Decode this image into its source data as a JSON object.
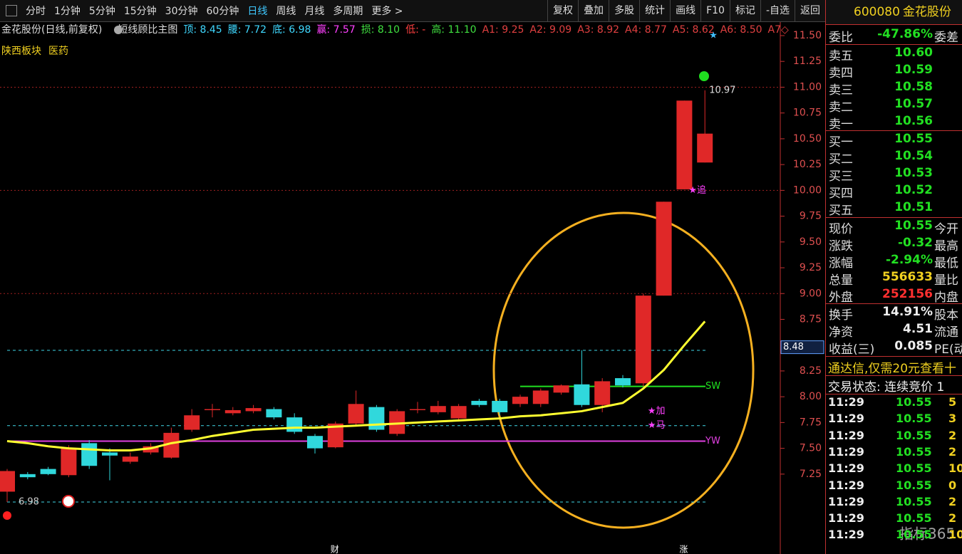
{
  "toolbar": {
    "tabs": [
      "分时",
      "1分钟",
      "5分钟",
      "15分钟",
      "30分钟",
      "60分钟",
      "日线",
      "周线",
      "月线",
      "多周期",
      "更多 >"
    ],
    "active": 6,
    "buttons": [
      "复权",
      "叠加",
      "多股",
      "统计",
      "画线",
      "F10",
      "标记",
      "-自选",
      "返回"
    ]
  },
  "stock": {
    "code": "600080",
    "name": "金花股份"
  },
  "indicator": {
    "title": "金花股份(日线,前复权)",
    "name": "短线顾比主图",
    "items": [
      {
        "text": "顶: 8.45",
        "color": "#3fd8ff"
      },
      {
        "text": "腰: 7.72",
        "color": "#3fd8ff"
      },
      {
        "text": "底: 6.98",
        "color": "#3fd8ff"
      },
      {
        "text": "赢: 7.57",
        "color": "#ff40ff"
      },
      {
        "text": "损: 8.10",
        "color": "#40e040"
      },
      {
        "text": "低: -",
        "color": "#ff4040"
      },
      {
        "text": "高: 11.10",
        "color": "#40e040"
      },
      {
        "text": "A1: 9.25",
        "color": "#e04040"
      },
      {
        "text": "A2: 9.09",
        "color": "#e04040"
      },
      {
        "text": "A3: 8.92",
        "color": "#e04040"
      },
      {
        "text": "A4: 8.77",
        "color": "#e04040"
      },
      {
        "text": "A5: 8.62",
        "color": "#e04040"
      },
      {
        "text": "A6: 8.50",
        "color": "#e04040"
      },
      {
        "text": "A7◇",
        "color": "#e04040"
      }
    ],
    "sector": [
      "陕西板块",
      "医药"
    ]
  },
  "chart_data": {
    "type": "candlestick",
    "ylim": [
      6.75,
      11.75
    ],
    "yticks": [
      {
        "value": 11.5,
        "label": "11.50"
      },
      {
        "value": 11.25,
        "label": "11.25"
      },
      {
        "value": 11,
        "label": "11.00"
      },
      {
        "value": 10.75,
        "label": "10.75"
      },
      {
        "value": 10.5,
        "label": "10.50"
      },
      {
        "value": 10.25,
        "label": "10.25"
      },
      {
        "value": 10,
        "label": "10.00"
      },
      {
        "value": 9.75,
        "label": "9.75"
      },
      {
        "value": 9.5,
        "label": "9.50"
      },
      {
        "value": 9.25,
        "label": "9.25"
      },
      {
        "value": 9,
        "label": "9.00"
      },
      {
        "value": 8.75,
        "label": "8.75"
      },
      {
        "value": 8.25,
        "label": "8.25"
      },
      {
        "value": 8,
        "label": "8.00"
      },
      {
        "value": 7.75,
        "label": "7.75"
      },
      {
        "value": 7.5,
        "label": "7.50"
      },
      {
        "value": 7.25,
        "label": "7.25"
      }
    ],
    "grid_values": [
      11,
      10,
      9
    ],
    "cursor": {
      "value": 8.48,
      "label": "8.48"
    },
    "up_color": "#e02828",
    "down_color": "#30d8dc",
    "candles": [
      {
        "open": 7.08,
        "close": 7.28,
        "high": 7.3,
        "low": 6.98
      },
      {
        "open": 7.25,
        "close": 7.22,
        "high": 7.27,
        "low": 7.2
      },
      {
        "open": 7.3,
        "close": 7.25,
        "high": 7.32,
        "low": 7.24
      },
      {
        "open": 7.24,
        "close": 7.5,
        "high": 7.53,
        "low": 7.22
      },
      {
        "open": 7.55,
        "close": 7.33,
        "high": 7.58,
        "low": 7.3
      },
      {
        "open": 7.46,
        "close": 7.43,
        "high": 7.5,
        "low": 7.19
      },
      {
        "open": 7.37,
        "close": 7.42,
        "high": 7.46,
        "low": 7.35
      },
      {
        "open": 7.46,
        "close": 7.52,
        "high": 7.55,
        "low": 7.44
      },
      {
        "open": 7.41,
        "close": 7.65,
        "high": 7.7,
        "low": 7.4
      },
      {
        "open": 7.68,
        "close": 7.82,
        "high": 7.88,
        "low": 7.66
      },
      {
        "open": 7.87,
        "close": 7.88,
        "high": 7.93,
        "low": 7.8
      },
      {
        "open": 7.84,
        "close": 7.87,
        "high": 7.9,
        "low": 7.82
      },
      {
        "open": 7.86,
        "close": 7.89,
        "high": 7.92,
        "low": 7.84
      },
      {
        "open": 7.88,
        "close": 7.8,
        "high": 7.9,
        "low": 7.78
      },
      {
        "open": 7.8,
        "close": 7.66,
        "high": 7.84,
        "low": 7.64
      },
      {
        "open": 7.62,
        "close": 7.5,
        "high": 7.64,
        "low": 7.45
      },
      {
        "open": 7.51,
        "close": 7.74,
        "high": 7.76,
        "low": 7.5
      },
      {
        "open": 7.74,
        "close": 7.93,
        "high": 8.06,
        "low": 7.72
      },
      {
        "open": 7.9,
        "close": 7.68,
        "high": 7.92,
        "low": 7.66
      },
      {
        "open": 7.64,
        "close": 7.86,
        "high": 7.88,
        "low": 7.62
      },
      {
        "open": 7.87,
        "close": 7.88,
        "high": 7.95,
        "low": 7.84
      },
      {
        "open": 7.85,
        "close": 7.91,
        "high": 7.96,
        "low": 7.83
      },
      {
        "open": 7.79,
        "close": 7.91,
        "high": 7.93,
        "low": 7.77
      },
      {
        "open": 7.96,
        "close": 7.92,
        "high": 7.98,
        "low": 7.9
      },
      {
        "open": 7.96,
        "close": 7.85,
        "high": 7.98,
        "low": 7.82
      },
      {
        "open": 7.93,
        "close": 8.0,
        "high": 8.02,
        "low": 7.9
      },
      {
        "open": 7.93,
        "close": 8.06,
        "high": 8.08,
        "low": 7.9
      },
      {
        "open": 8.04,
        "close": 8.11,
        "high": 8.12,
        "low": 8.02
      },
      {
        "open": 8.12,
        "close": 7.92,
        "high": 8.45,
        "low": 7.9
      },
      {
        "open": 7.92,
        "close": 8.15,
        "high": 8.18,
        "low": 7.85
      },
      {
        "open": 8.18,
        "close": 8.11,
        "high": 8.21,
        "low": 8.09
      },
      {
        "open": 8.13,
        "close": 8.98,
        "high": 9.0,
        "low": 8.1
      },
      {
        "open": 8.98,
        "close": 9.89,
        "high": 9.89,
        "low": 8.98
      },
      {
        "open": 10.01,
        "close": 10.87,
        "high": 10.87,
        "low": 10.01
      },
      {
        "open": 10.27,
        "close": 10.55,
        "high": 10.97,
        "low": 10.27
      }
    ],
    "ma": {
      "color": "#ffff30",
      "values": [
        7.57,
        7.55,
        7.52,
        7.5,
        7.49,
        7.48,
        7.48,
        7.5,
        7.55,
        7.58,
        7.62,
        7.65,
        7.68,
        7.69,
        7.7,
        7.7,
        7.71,
        7.72,
        7.73,
        7.74,
        7.75,
        7.76,
        7.77,
        7.78,
        7.79,
        7.81,
        7.82,
        7.84,
        7.86,
        7.9,
        7.94,
        8.08,
        8.26,
        8.5,
        8.73
      ]
    },
    "levels": [
      {
        "value": 8.45,
        "color": "#40d8e8",
        "style": "dash"
      },
      {
        "value": 7.72,
        "color": "#40d8e8",
        "style": "dash"
      },
      {
        "value": 6.98,
        "color": "#40d8e8",
        "style": "dash",
        "label": "6.98"
      },
      {
        "value": 8.1,
        "color": "#20e020",
        "style": "solid",
        "label": "SW"
      },
      {
        "value": 7.57,
        "color": "#e040e0",
        "style": "solid",
        "label": "YW"
      }
    ],
    "annotations": [
      {
        "text": "10.97",
        "candle": 34,
        "value": 10.97,
        "color": "#ddd"
      },
      {
        "text": "★追",
        "candle": 33,
        "value": 10.0,
        "color": "#ff40ff"
      },
      {
        "text": "★加",
        "candle": 31,
        "value": 7.86,
        "color": "#ff40ff"
      },
      {
        "text": "★马",
        "candle": 31,
        "value": 7.72,
        "color": "#ff40ff"
      },
      {
        "text": "★",
        "candle": 34,
        "value": 11.5,
        "color": "#40c0ff"
      }
    ],
    "bottom_marks": [
      {
        "text": "财",
        "candle": 16
      },
      {
        "text": "涨",
        "candle": 33
      }
    ],
    "watermark": "指标365"
  },
  "panel": {
    "top": [
      {
        "label": "委比",
        "value": "-47.86%",
        "cls": "g",
        "extra": "委差"
      }
    ],
    "sell": [
      {
        "label": "卖五",
        "value": "10.60"
      },
      {
        "label": "卖四",
        "value": "10.59"
      },
      {
        "label": "卖三",
        "value": "10.58"
      },
      {
        "label": "卖二",
        "value": "10.57"
      },
      {
        "label": "卖一",
        "value": "10.56"
      }
    ],
    "buy": [
      {
        "label": "买一",
        "value": "10.55"
      },
      {
        "label": "买二",
        "value": "10.54"
      },
      {
        "label": "买三",
        "value": "10.53"
      },
      {
        "label": "买四",
        "value": "10.52"
      },
      {
        "label": "买五",
        "value": "10.51"
      }
    ],
    "quote": [
      {
        "label": "现价",
        "value": "10.55",
        "cls": "g",
        "extra": "今开"
      },
      {
        "label": "涨跌",
        "value": "-0.32",
        "cls": "g",
        "extra": "最高"
      },
      {
        "label": "涨幅",
        "value": "-2.94%",
        "cls": "g",
        "extra": "最低"
      },
      {
        "label": "总量",
        "value": "556633",
        "cls": "y",
        "extra": "量比"
      },
      {
        "label": "外盘",
        "value": "252156",
        "cls": "r",
        "extra": "内盘"
      }
    ],
    "finance": [
      {
        "label": "换手",
        "value": "14.91%",
        "cls": "w",
        "extra": "股本"
      },
      {
        "label": "净资",
        "value": "4.51",
        "cls": "w",
        "extra": "流通"
      },
      {
        "label": "收益(三)",
        "value": "0.085",
        "cls": "w",
        "extra": "PE(动)"
      }
    ],
    "ad": "通达信,仅需20元查看十",
    "status": "交易状态: 连续竞价 1",
    "ticks": [
      {
        "time": "11:29",
        "price": "10.55",
        "vol": "5"
      },
      {
        "time": "11:29",
        "price": "10.55",
        "vol": "3"
      },
      {
        "time": "11:29",
        "price": "10.55",
        "vol": "2"
      },
      {
        "time": "11:29",
        "price": "10.55",
        "vol": "2"
      },
      {
        "time": "11:29",
        "price": "10.55",
        "vol": "10"
      },
      {
        "time": "11:29",
        "price": "10.55",
        "vol": "0"
      },
      {
        "time": "11:29",
        "price": "10.55",
        "vol": "2"
      },
      {
        "time": "11:29",
        "price": "10.55",
        "vol": "2"
      },
      {
        "time": "11:29",
        "price": "10.55",
        "vol": "10"
      }
    ]
  }
}
